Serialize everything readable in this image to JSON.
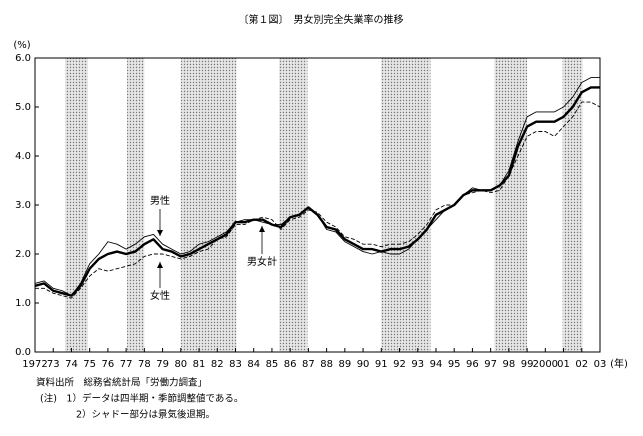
{
  "chart_data": {
    "type": "line",
    "title": "〔第１図〕　男女別完全失業率の推移",
    "y_unit": "(%)",
    "x_unit": "(年)",
    "x": [
      1972,
      1972.5,
      1973,
      1973.5,
      1974,
      1974.5,
      1975,
      1975.5,
      1976,
      1976.5,
      1977,
      1977.5,
      1978,
      1978.5,
      1979,
      1979.5,
      1980,
      1980.5,
      1981,
      1981.5,
      1982,
      1982.5,
      1983,
      1983.5,
      1984,
      1984.5,
      1985,
      1985.5,
      1986,
      1986.5,
      1987,
      1987.5,
      1988,
      1988.5,
      1989,
      1989.5,
      1990,
      1990.5,
      1991,
      1991.5,
      1992,
      1992.5,
      1993,
      1993.5,
      1994,
      1994.5,
      1995,
      1995.5,
      1996,
      1996.5,
      1997,
      1997.5,
      1998,
      1998.5,
      1999,
      1999.5,
      2000,
      2000.5,
      2001,
      2001.5,
      2002,
      2002.5,
      2003
    ],
    "series": [
      {
        "name": "男性",
        "color": "#000000",
        "style": "solid",
        "values": [
          1.4,
          1.45,
          1.3,
          1.25,
          1.15,
          1.4,
          1.8,
          2.0,
          2.25,
          2.2,
          2.1,
          2.2,
          2.35,
          2.4,
          2.2,
          2.1,
          2.0,
          2.05,
          2.2,
          2.25,
          2.35,
          2.45,
          2.65,
          2.7,
          2.7,
          2.65,
          2.6,
          2.6,
          2.75,
          2.8,
          2.95,
          2.8,
          2.5,
          2.45,
          2.25,
          2.15,
          2.05,
          2.0,
          2.05,
          2.0,
          2.0,
          2.1,
          2.3,
          2.5,
          2.7,
          2.9,
          3.0,
          3.2,
          3.35,
          3.3,
          3.3,
          3.4,
          3.7,
          4.3,
          4.8,
          4.9,
          4.9,
          4.9,
          5.0,
          5.2,
          5.5,
          5.6,
          5.6
        ]
      },
      {
        "name": "女性",
        "color": "#000000",
        "style": "dashed",
        "values": [
          1.3,
          1.3,
          1.2,
          1.15,
          1.1,
          1.3,
          1.55,
          1.7,
          1.65,
          1.7,
          1.75,
          1.8,
          1.95,
          2.0,
          2.0,
          1.95,
          1.9,
          1.95,
          2.05,
          2.1,
          2.3,
          2.35,
          2.6,
          2.6,
          2.7,
          2.75,
          2.7,
          2.5,
          2.7,
          2.75,
          2.9,
          2.85,
          2.65,
          2.55,
          2.35,
          2.3,
          2.2,
          2.2,
          2.15,
          2.2,
          2.2,
          2.25,
          2.4,
          2.6,
          2.9,
          3.0,
          3.0,
          3.2,
          3.25,
          3.3,
          3.25,
          3.3,
          3.6,
          4.0,
          4.4,
          4.5,
          4.5,
          4.4,
          4.6,
          4.8,
          5.1,
          5.1,
          5.0
        ]
      },
      {
        "name": "男女計",
        "color": "#000000",
        "style": "bold",
        "values": [
          1.35,
          1.4,
          1.25,
          1.2,
          1.15,
          1.35,
          1.7,
          1.9,
          2.0,
          2.05,
          2.0,
          2.05,
          2.2,
          2.3,
          2.1,
          2.05,
          1.95,
          2.0,
          2.1,
          2.2,
          2.3,
          2.4,
          2.65,
          2.65,
          2.7,
          2.7,
          2.6,
          2.55,
          2.75,
          2.8,
          2.95,
          2.8,
          2.55,
          2.5,
          2.3,
          2.2,
          2.1,
          2.1,
          2.05,
          2.1,
          2.1,
          2.15,
          2.3,
          2.5,
          2.8,
          2.9,
          3.0,
          3.2,
          3.3,
          3.3,
          3.3,
          3.4,
          3.6,
          4.2,
          4.6,
          4.7,
          4.7,
          4.7,
          4.8,
          5.0,
          5.3,
          5.4,
          5.4
        ]
      }
    ],
    "shaded_periods": [
      [
        1973.65,
        1974.9
      ],
      [
        1977.05,
        1978.0
      ],
      [
        1980.0,
        1983.05
      ],
      [
        1985.4,
        1986.95
      ],
      [
        1991.0,
        1993.7
      ],
      [
        1997.2,
        1999.0
      ],
      [
        2000.95,
        2002.05
      ]
    ],
    "xlim": [
      1972,
      2003
    ],
    "ylim": [
      0,
      6
    ],
    "yticks": [
      {
        "value": 0,
        "label": "0.0"
      },
      {
        "value": 1,
        "label": "1.0"
      },
      {
        "value": 2,
        "label": "2.0"
      },
      {
        "value": 3,
        "label": "3.0"
      },
      {
        "value": 4,
        "label": "4.0"
      },
      {
        "value": 5,
        "label": "5.0"
      },
      {
        "value": 6,
        "label": "6.0"
      }
    ],
    "xticks": [
      1972,
      {
        "value": 1973,
        "label": "73"
      },
      {
        "value": 1974,
        "label": "74"
      },
      {
        "value": 1975,
        "label": "75"
      },
      {
        "value": 1976,
        "label": "76"
      },
      {
        "value": 1977,
        "label": "77"
      },
      {
        "value": 1978,
        "label": "78"
      },
      {
        "value": 1979,
        "label": "79"
      },
      {
        "value": 1980,
        "label": "80"
      },
      {
        "value": 1981,
        "label": "81"
      },
      {
        "value": 1982,
        "label": "82"
      },
      {
        "value": 1983,
        "label": "83"
      },
      {
        "value": 1984,
        "label": "84"
      },
      {
        "value": 1985,
        "label": "85"
      },
      {
        "value": 1986,
        "label": "86"
      },
      {
        "value": 1987,
        "label": "87"
      },
      {
        "value": 1988,
        "label": "88"
      },
      {
        "value": 1989,
        "label": "89"
      },
      {
        "value": 1990,
        "label": "90"
      },
      {
        "value": 1991,
        "label": "91"
      },
      {
        "value": 1992,
        "label": "92"
      },
      {
        "value": 1993,
        "label": "93"
      },
      {
        "value": 1994,
        "label": "94"
      },
      {
        "value": 1995,
        "label": "95"
      },
      {
        "value": 1996,
        "label": "96"
      },
      {
        "value": 1997,
        "label": "97"
      },
      {
        "value": 1998,
        "label": "98"
      },
      {
        "value": 1999,
        "label": "99"
      },
      2000,
      {
        "value": 2001,
        "label": "01"
      },
      {
        "value": 2002,
        "label": "02"
      },
      {
        "value": 2003,
        "label": "03"
      }
    ],
    "source": "資料出所　総務省統計局「労働力調査」",
    "notes": [
      "(注)　1）データは四半期・季節調整値である。",
      "2）シャドー部分は景気後退期。"
    ]
  }
}
